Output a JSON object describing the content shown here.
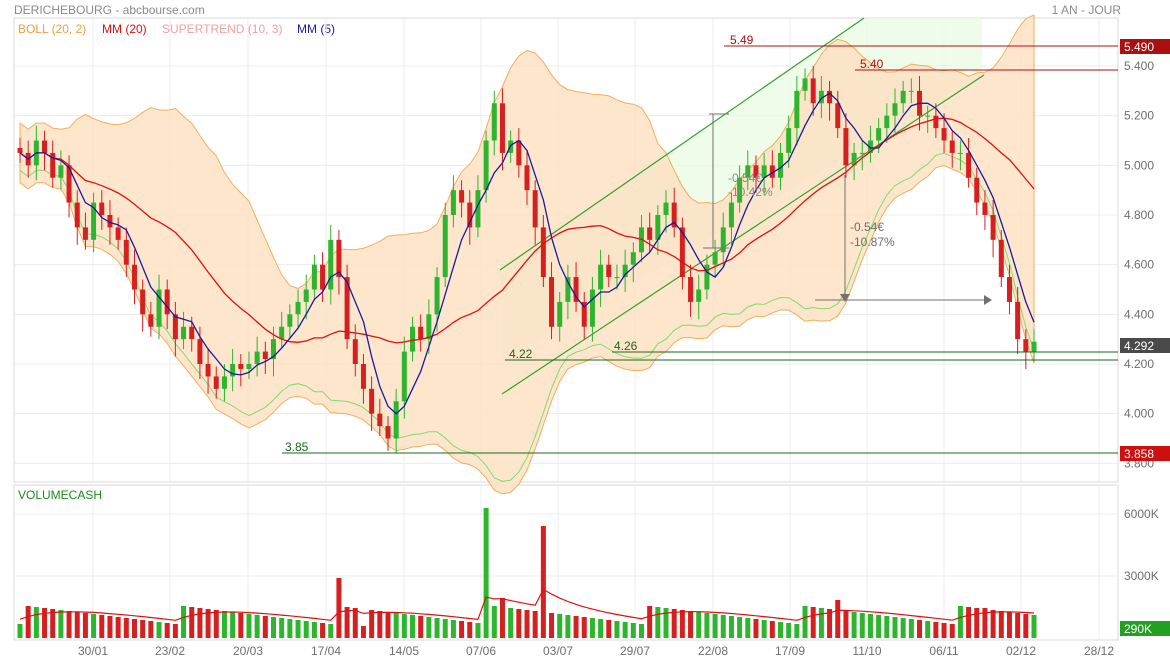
{
  "header": {
    "title": "DERICHEBOURG - abcbourse.com",
    "period": "1 AN - JOUR"
  },
  "legend": [
    {
      "label": "BOLL (20, 2)",
      "color": "#f0a040"
    },
    {
      "label": "MM (20)",
      "color": "#e01010"
    },
    {
      "label": "SUPERTREND (10, 3)",
      "color": "#f4a0a0"
    },
    {
      "label": "MM (5)",
      "color": "#1a1aa0"
    }
  ],
  "volume_label": "VOLUMECASH",
  "colors": {
    "up": "#2db52d",
    "down": "#d62020",
    "band_fill": "#fde2c4",
    "band_line": "#f0a040",
    "channel": "#33a133",
    "mm20": "#e01010",
    "mm5": "#1a1aa0"
  },
  "annotations": {
    "high_label": "5.49",
    "high_badge": "5.490",
    "level_540": "5.40",
    "level_426": "4.26",
    "level_422": "4.22",
    "low_label": "3.85",
    "low_badge": "3.858",
    "last_badge": "4.292",
    "vol_badge": "290K",
    "move1_eur": "-0.54€",
    "move1_pct": "-10.42%",
    "move2_eur": "-0.54€",
    "move2_pct": "-10.87%"
  },
  "chart_data": {
    "type": "candlestick",
    "x_ticks": [
      "30/01",
      "23/02",
      "20/03",
      "17/04",
      "14/05",
      "07/06",
      "03/07",
      "29/07",
      "22/08",
      "17/09",
      "11/10",
      "06/11",
      "02/12",
      "28/12"
    ],
    "y_ticks": [
      "5.400",
      "5.200",
      "5.000",
      "4.800",
      "4.600",
      "4.400",
      "4.200",
      "4.000",
      "3.800"
    ],
    "ylim": [
      3.8,
      5.55
    ],
    "volume_ticks": [
      "6000K",
      "3000K"
    ],
    "close_series": [
      5.05,
      5.0,
      5.1,
      5.05,
      4.95,
      5.0,
      4.85,
      4.75,
      4.7,
      4.85,
      4.8,
      4.75,
      4.7,
      4.6,
      4.5,
      4.4,
      4.35,
      4.5,
      4.4,
      4.3,
      4.35,
      4.3,
      4.2,
      4.15,
      4.1,
      4.15,
      4.2,
      4.18,
      4.2,
      4.25,
      4.22,
      4.3,
      4.35,
      4.4,
      4.45,
      4.5,
      4.6,
      4.5,
      4.7,
      4.55,
      4.3,
      4.2,
      4.1,
      4.0,
      3.95,
      3.9,
      4.05,
      4.25,
      4.35,
      4.3,
      4.4,
      4.55,
      4.8,
      4.9,
      4.85,
      4.75,
      4.9,
      5.1,
      5.25,
      5.05,
      5.1,
      5.0,
      4.9,
      4.75,
      4.55,
      4.35,
      4.45,
      4.55,
      4.45,
      4.35,
      4.5,
      4.6,
      4.55,
      4.55,
      4.6,
      4.65,
      4.75,
      4.7,
      4.8,
      4.85,
      4.75,
      4.55,
      4.45,
      4.5,
      4.6,
      4.65,
      4.75,
      4.85,
      4.95,
      5.0,
      4.95,
      5.0,
      4.95,
      5.05,
      5.15,
      5.3,
      5.35,
      5.25,
      5.3,
      5.25,
      5.15,
      5.0,
      5.05,
      5.05,
      5.1,
      5.15,
      5.2,
      5.25,
      5.3,
      5.3,
      5.2,
      5.2,
      5.15,
      5.1,
      5.05,
      5.05,
      4.95,
      4.85,
      4.8,
      4.7,
      4.55,
      4.45,
      4.3,
      4.25,
      4.29
    ],
    "key_levels": {
      "high": 5.49,
      "resistance": 5.4,
      "support_1": 4.26,
      "support_2": 4.22,
      "low": 3.85,
      "last": 4.292
    }
  }
}
